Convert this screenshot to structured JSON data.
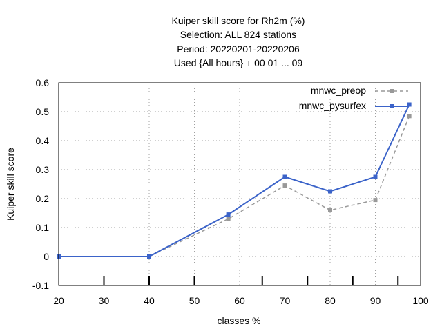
{
  "chart_data": {
    "type": "line",
    "title_lines": [
      "Kuiper skill score  for Rh2m (%)",
      "Selection: ALL    824 stations",
      "Period: 20220201-20220206",
      "Used {All hours} + 00 01 ... 09"
    ],
    "xlabel": "classes %",
    "ylabel": "Kuiper skill score",
    "xlim": [
      20,
      100
    ],
    "ylim": [
      -0.1,
      0.6
    ],
    "xticks": [
      20,
      30,
      40,
      50,
      60,
      70,
      80,
      90,
      100
    ],
    "yticks": [
      -0.1,
      0,
      0.1,
      0.2,
      0.3,
      0.4,
      0.5,
      0.6
    ],
    "ytick_labels": [
      "-0.1",
      "0",
      "0.1",
      "0.2",
      "0.3",
      "0.4",
      "0.5",
      "0.6"
    ],
    "class_marks": [
      30,
      40,
      50,
      65,
      75,
      85,
      95
    ],
    "grid": true,
    "legend_position": "top-right",
    "series": [
      {
        "name": "mnwc_preop",
        "color": "#999999",
        "dashed": true,
        "x": [
          20,
          40,
          57.5,
          70,
          80,
          90,
          97.5
        ],
        "y": [
          0.0,
          0.0,
          0.13,
          0.245,
          0.16,
          0.195,
          0.485
        ]
      },
      {
        "name": "mnwc_pysurfex",
        "color": "#3b63c9",
        "dashed": false,
        "x": [
          20,
          40,
          57.5,
          70,
          80,
          90,
          97.5
        ],
        "y": [
          0.0,
          0.0,
          0.145,
          0.275,
          0.225,
          0.275,
          0.525
        ]
      }
    ]
  }
}
